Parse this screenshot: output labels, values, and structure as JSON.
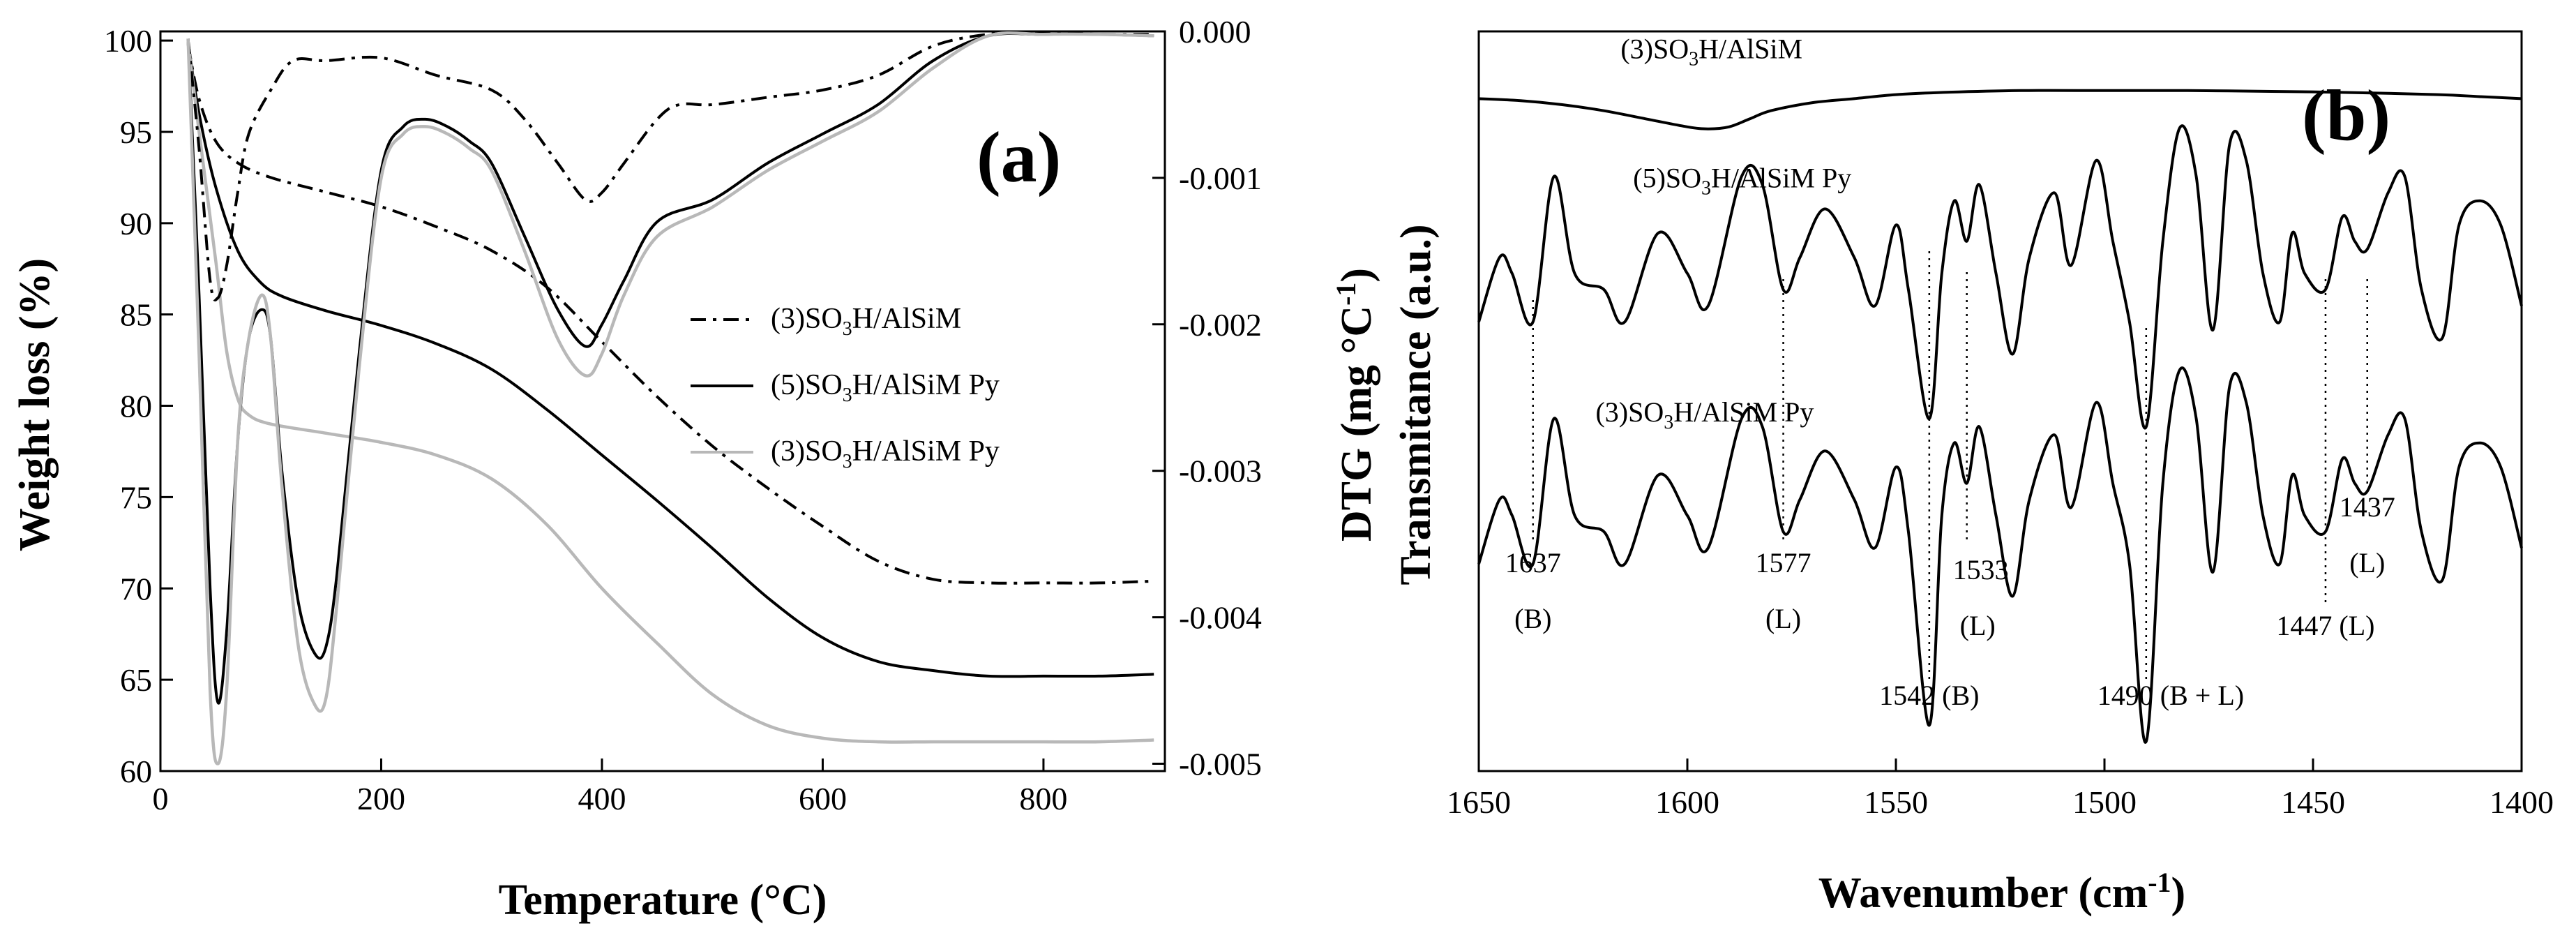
{
  "chart_data": [
    {
      "panel": "(a)",
      "type": "line",
      "xlabel": "Temperature (°C)",
      "ylabel_left": "Weight loss (%)",
      "ylabel_right": "DTG (mg °C",
      "ylabel_right_sup": "-1",
      "ylabel_right_close": ")",
      "xlim": [
        0,
        910
      ],
      "ylim_left": [
        60,
        100.5
      ],
      "ylim_right": [
        -0.00505,
        0.0
      ],
      "x_ticks": [
        0,
        200,
        400,
        600,
        800
      ],
      "y_ticks_left": [
        60,
        65,
        70,
        75,
        80,
        85,
        90,
        95,
        100
      ],
      "y_ticks_right": [
        0.0,
        -0.001,
        -0.002,
        -0.003,
        -0.004,
        -0.005
      ],
      "y_tick_labels_right": [
        "0.000",
        "-0.001",
        "-0.002",
        "-0.003",
        "-0.004",
        "-0.005"
      ],
      "legend": [
        {
          "pre": "(3)SO",
          "sub": "3",
          "post": "H/AlSiM",
          "style": "dashdot",
          "color": "#000000"
        },
        {
          "pre": "(5)SO",
          "sub": "3",
          "post": "H/AlSiM Py",
          "style": "solid",
          "color": "#000000"
        },
        {
          "pre": "(3)SO",
          "sub": "3",
          "post": "H/AlSiM Py",
          "style": "solid",
          "color": "#b8b8b8"
        }
      ],
      "series": [
        {
          "name": "(3)SO3H/AlSiM weight loss",
          "axis": "left",
          "style": "dashdot",
          "color": "#000000",
          "x": [
            25,
            35,
            50,
            70,
            100,
            150,
            200,
            250,
            300,
            350,
            400,
            450,
            500,
            550,
            600,
            650,
            700,
            750,
            800,
            850,
            900
          ],
          "y": [
            99.8,
            96.8,
            94.5,
            93.3,
            92.5,
            91.7,
            90.9,
            89.8,
            88.5,
            86.5,
            83.5,
            80.5,
            77.8,
            75.5,
            73.4,
            71.5,
            70.5,
            70.3,
            70.3,
            70.3,
            70.4
          ]
        },
        {
          "name": "(5)SO3H/AlSiM Py weight loss",
          "axis": "left",
          "style": "solid",
          "color": "#000000",
          "x": [
            25,
            35,
            50,
            70,
            90,
            110,
            150,
            200,
            250,
            300,
            350,
            400,
            450,
            500,
            550,
            600,
            650,
            700,
            750,
            800,
            850,
            900
          ],
          "y": [
            99.9,
            96.0,
            92.0,
            88.5,
            86.8,
            86.0,
            85.2,
            84.4,
            83.4,
            82.0,
            79.8,
            77.3,
            74.8,
            72.2,
            69.5,
            67.3,
            66.0,
            65.5,
            65.2,
            65.2,
            65.2,
            65.3
          ]
        },
        {
          "name": "(3)SO3H/AlSiM Py weight loss",
          "axis": "left",
          "style": "solid",
          "color": "#b8b8b8",
          "x": [
            25,
            35,
            50,
            60,
            70,
            80,
            100,
            150,
            200,
            250,
            300,
            350,
            400,
            450,
            500,
            550,
            600,
            650,
            700,
            750,
            800,
            850,
            900
          ],
          "y": [
            99.9,
            95.0,
            88.0,
            83.0,
            80.4,
            79.5,
            79.0,
            78.5,
            78.0,
            77.3,
            76.0,
            73.5,
            70.0,
            67.0,
            64.2,
            62.5,
            61.8,
            61.6,
            61.6,
            61.6,
            61.6,
            61.6,
            61.7
          ]
        },
        {
          "name": "(3)SO3H/AlSiM DTG",
          "axis": "right",
          "style": "dashdot",
          "color": "#000000",
          "x": [
            25,
            35,
            45,
            52,
            60,
            70,
            80,
            100,
            120,
            150,
            200,
            250,
            300,
            330,
            360,
            385,
            400,
            420,
            450,
            470,
            500,
            550,
            600,
            650,
            700,
            750,
            800,
            850,
            900
          ],
          "y": [
            -5e-05,
            -0.0008,
            -0.0017,
            -0.00182,
            -0.0016,
            -0.0011,
            -0.0007,
            -0.0004,
            -0.0002,
            -0.0002,
            -0.00018,
            -0.0003,
            -0.0004,
            -0.0006,
            -0.0009,
            -0.00115,
            -0.0011,
            -0.0009,
            -0.0006,
            -0.0005,
            -0.0005,
            -0.00045,
            -0.0004,
            -0.0003,
            -0.0001,
            -2e-05,
            -1e-05,
            -2e-05,
            -2e-05
          ]
        },
        {
          "name": "(5)SO3H/AlSiM Py DTG",
          "axis": "right",
          "style": "solid",
          "color": "#000000",
          "x": [
            25,
            35,
            45,
            52,
            60,
            70,
            80,
            92,
            100,
            110,
            125,
            140,
            150,
            160,
            180,
            200,
            220,
            240,
            260,
            280,
            300,
            330,
            360,
            385,
            400,
            420,
            450,
            500,
            550,
            600,
            650,
            700,
            750,
            800,
            850,
            900
          ],
          "y": [
            -5e-05,
            -0.0018,
            -0.0038,
            -0.00458,
            -0.0041,
            -0.0028,
            -0.0021,
            -0.0019,
            -0.0021,
            -0.003,
            -0.0039,
            -0.00425,
            -0.0042,
            -0.0037,
            -0.0022,
            -0.00095,
            -0.00065,
            -0.0006,
            -0.00065,
            -0.00075,
            -0.0009,
            -0.0014,
            -0.0019,
            -0.00215,
            -0.002,
            -0.0017,
            -0.0013,
            -0.00115,
            -0.0009,
            -0.0007,
            -0.0005,
            -0.0002,
            -3e-05,
            -2e-05,
            -2e-05,
            -3e-05
          ]
        },
        {
          "name": "(3)SO3H/AlSiM Py DTG",
          "axis": "right",
          "style": "solid",
          "color": "#b8b8b8",
          "x": [
            25,
            35,
            45,
            52,
            60,
            70,
            80,
            92,
            100,
            110,
            125,
            140,
            150,
            160,
            180,
            200,
            220,
            240,
            260,
            280,
            300,
            330,
            360,
            385,
            400,
            420,
            450,
            500,
            550,
            600,
            650,
            700,
            750,
            800,
            850,
            900
          ],
          "y": [
            -5e-05,
            -0.0022,
            -0.0045,
            -0.005,
            -0.0045,
            -0.0028,
            -0.0021,
            -0.0018,
            -0.0021,
            -0.0031,
            -0.0042,
            -0.0046,
            -0.00455,
            -0.0039,
            -0.0023,
            -0.001,
            -0.0007,
            -0.00065,
            -0.0007,
            -0.0008,
            -0.00095,
            -0.0015,
            -0.0021,
            -0.00235,
            -0.0022,
            -0.0018,
            -0.0014,
            -0.0012,
            -0.00095,
            -0.00075,
            -0.00055,
            -0.00025,
            -3e-05,
            -2e-05,
            -2e-05,
            -3e-05
          ]
        }
      ]
    },
    {
      "panel": "(b)",
      "type": "line",
      "xlabel": "Wavenumber (cm",
      "xlabel_sup": "-1",
      "xlabel_close": ")",
      "ylabel": "Transmitance (a.u.)",
      "xlim": [
        1650,
        1400
      ],
      "x_ticks": [
        1650,
        1600,
        1550,
        1500,
        1450,
        1400
      ],
      "series": [
        {
          "label_pre": "(3)SO",
          "label_sub": "3",
          "label_post": "H/AlSiM",
          "offset": 1.25,
          "scale": 0.15,
          "x": [
            1650,
            1640,
            1630,
            1620,
            1610,
            1600,
            1595,
            1590,
            1585,
            1580,
            1570,
            1560,
            1550,
            1540,
            1520,
            1500,
            1480,
            1460,
            1440,
            1420,
            1410,
            1400
          ],
          "y": [
            0.0,
            -0.05,
            -0.15,
            -0.3,
            -0.5,
            -0.7,
            -0.75,
            -0.7,
            -0.5,
            -0.3,
            -0.1,
            0.0,
            0.1,
            0.15,
            0.2,
            0.2,
            0.2,
            0.18,
            0.15,
            0.1,
            0.05,
            0.0
          ]
        },
        {
          "label_pre": "(5)SO",
          "label_sub": "3",
          "label_post": "H/AlSiM Py",
          "offset": 0.6,
          "scale": 0.6,
          "x": [
            1650,
            1645,
            1642,
            1637,
            1632,
            1627,
            1620,
            1615,
            1607,
            1600,
            1595,
            1587,
            1582,
            1577,
            1573,
            1567,
            1560,
            1555,
            1550,
            1547,
            1542,
            1539,
            1536,
            1533,
            1530,
            1526,
            1522,
            1518,
            1512,
            1508,
            1502,
            1498,
            1494,
            1490,
            1486,
            1482,
            1478,
            1474,
            1470,
            1466,
            1462,
            1458,
            1455,
            1452,
            1447,
            1443,
            1440,
            1437,
            1432,
            1428,
            1424,
            1419,
            1415,
            1410,
            1405,
            1400
          ],
          "y": [
            -0.3,
            0.1,
            0.0,
            -0.3,
            0.6,
            0.0,
            -0.1,
            -0.3,
            0.25,
            0.0,
            -0.2,
            0.6,
            0.55,
            -0.1,
            0.1,
            0.4,
            0.1,
            -0.2,
            0.3,
            -0.1,
            -0.9,
            0.0,
            0.45,
            0.2,
            0.55,
            0.0,
            -0.5,
            0.1,
            0.5,
            0.05,
            0.7,
            0.2,
            -0.3,
            -0.95,
            0.2,
            0.9,
            0.6,
            -0.35,
            0.8,
            0.7,
            0.0,
            -0.3,
            0.25,
            0.0,
            -0.1,
            0.35,
            0.2,
            0.15,
            0.5,
            0.6,
            -0.1,
            -0.4,
            0.3,
            0.45,
            0.3,
            -0.2
          ]
        },
        {
          "label_pre": "(3)SO",
          "label_sub": "3",
          "label_post": "H/AlSiM Py",
          "offset": -0.3,
          "scale": 0.6,
          "x": [
            1650,
            1645,
            1642,
            1637,
            1632,
            1627,
            1620,
            1615,
            1607,
            1600,
            1595,
            1587,
            1582,
            1577,
            1573,
            1567,
            1560,
            1555,
            1550,
            1547,
            1542,
            1539,
            1536,
            1533,
            1530,
            1526,
            1522,
            1518,
            1512,
            1508,
            1502,
            1498,
            1494,
            1490,
            1486,
            1482,
            1478,
            1474,
            1470,
            1466,
            1462,
            1458,
            1455,
            1452,
            1447,
            1443,
            1440,
            1437,
            1432,
            1428,
            1424,
            1419,
            1415,
            1410,
            1405,
            1400
          ],
          "y": [
            -0.3,
            0.1,
            0.0,
            -0.3,
            0.6,
            0.0,
            -0.1,
            -0.3,
            0.25,
            0.0,
            -0.2,
            0.6,
            0.55,
            -0.1,
            0.1,
            0.4,
            0.1,
            -0.2,
            0.3,
            -0.1,
            -1.3,
            0.0,
            0.45,
            0.2,
            0.55,
            0.0,
            -0.5,
            0.1,
            0.5,
            0.05,
            0.7,
            0.2,
            -0.3,
            -1.4,
            0.2,
            0.9,
            0.6,
            -0.35,
            0.8,
            0.7,
            0.0,
            -0.3,
            0.25,
            0.0,
            -0.1,
            0.35,
            0.2,
            0.15,
            0.5,
            0.6,
            -0.1,
            -0.4,
            0.3,
            0.45,
            0.3,
            -0.2
          ]
        }
      ],
      "annotations": [
        {
          "x": 1637,
          "line1": "1637",
          "line2": "(B)"
        },
        {
          "x": 1577,
          "line1": "1577",
          "line2": "(L)"
        },
        {
          "x": 1542,
          "line1": "1542 (B)",
          "line2": ""
        },
        {
          "x": 1533,
          "line1": "1533",
          "line2": "(L)"
        },
        {
          "x": 1490,
          "line1": "1490 (B + L)",
          "line2": ""
        },
        {
          "x": 1447,
          "line1": "1447 (L)",
          "line2": ""
        },
        {
          "x": 1437,
          "line1": "1437",
          "line2": "(L)"
        }
      ]
    }
  ]
}
